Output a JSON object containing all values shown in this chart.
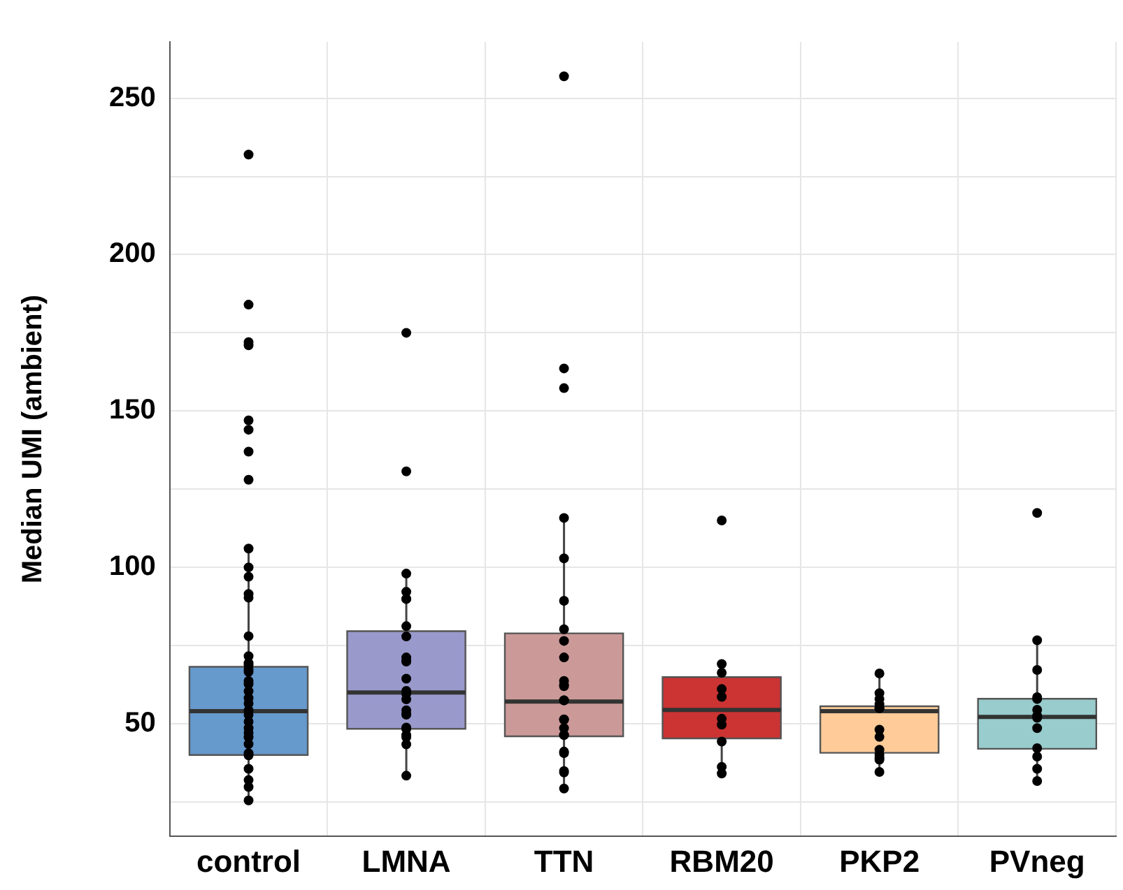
{
  "chart_data": {
    "type": "box",
    "ylabel": "Median UMI (ambient)",
    "categories": [
      "control",
      "LMNA",
      "TTN",
      "RBM20",
      "PKP2",
      "PVneg"
    ],
    "colors": [
      "#6699cc",
      "#9999cc",
      "#cc9999",
      "#cc3333",
      "#ffcc99",
      "#99cccc"
    ],
    "boxes": [
      {
        "low": 25,
        "q1": 40,
        "median": 54,
        "q3": 68.2,
        "high": 105.8
      },
      {
        "low": 33.3,
        "q1": 48.4,
        "median": 60,
        "q3": 79.6,
        "high": 97.8
      },
      {
        "low": 28.9,
        "q1": 46,
        "median": 57.1,
        "q3": 78.9,
        "high": 115.8
      },
      {
        "low": 35,
        "q1": 45.3,
        "median": 54.4,
        "q3": 64.9,
        "high": 68.9
      },
      {
        "low": 34.2,
        "q1": 40.7,
        "median": 54,
        "q3": 55.6,
        "high": 65.8
      },
      {
        "low": 31.1,
        "q1": 42,
        "median": 52.2,
        "q3": 58,
        "high": 75.8
      }
    ],
    "series": [
      {
        "type": "scatter",
        "color": "#000000",
        "x": [
          "control",
          "control",
          "control",
          "control",
          "control",
          "control",
          "control",
          "control",
          "control",
          "control",
          "control",
          "control",
          "control",
          "control",
          "control",
          "control",
          "control",
          "control",
          "control",
          "control",
          "control",
          "control",
          "control",
          "control",
          "control",
          "control",
          "control",
          "control",
          "control",
          "control",
          "control",
          "control",
          "control",
          "control",
          "control",
          "control",
          "control",
          "LMNA",
          "LMNA",
          "LMNA",
          "LMNA",
          "LMNA",
          "LMNA",
          "LMNA",
          "LMNA",
          "LMNA",
          "LMNA",
          "LMNA",
          "LMNA",
          "LMNA",
          "LMNA",
          "LMNA",
          "LMNA",
          "LMNA",
          "LMNA",
          "LMNA",
          "LMNA",
          "LMNA",
          "LMNA",
          "LMNA",
          "LMNA",
          "TTN",
          "TTN",
          "TTN",
          "TTN",
          "TTN",
          "TTN",
          "TTN",
          "TTN",
          "TTN",
          "TTN",
          "TTN",
          "TTN",
          "TTN",
          "TTN",
          "TTN",
          "TTN",
          "TTN",
          "TTN",
          "TTN",
          "TTN",
          "TTN",
          "TTN",
          "TTN",
          "TTN",
          "RBM20",
          "RBM20",
          "RBM20",
          "RBM20",
          "RBM20",
          "RBM20",
          "RBM20",
          "RBM20",
          "RBM20",
          "RBM20",
          "PKP2",
          "PKP2",
          "PKP2",
          "PKP2",
          "PKP2",
          "PKP2",
          "PKP2",
          "PKP2",
          "PKP2",
          "PKP2",
          "PKP2",
          "PKP2",
          "PKP2",
          "PKP2",
          "PVneg",
          "PVneg",
          "PVneg",
          "PVneg",
          "PVneg",
          "PVneg",
          "PVneg",
          "PVneg",
          "PVneg",
          "PVneg",
          "PVneg",
          "PVneg",
          "PVneg"
        ],
        "values": [
          232,
          184,
          172,
          171,
          147,
          144,
          137,
          128,
          106,
          100,
          97,
          91.5,
          90.3,
          78,
          71.6,
          69.4,
          68.7,
          67.3,
          66.6,
          63.7,
          62.7,
          60.4,
          58.2,
          56.5,
          54.3,
          52.9,
          50.7,
          48.6,
          47.1,
          45.7,
          43.5,
          40.6,
          39.9,
          35.6,
          32,
          29.8,
          25.5,
          175,
          130.7,
          98,
          92.2,
          89.9,
          89.9,
          81.2,
          77.9,
          71.2,
          70.2,
          69.9,
          64.4,
          60.5,
          59.6,
          57.8,
          54.3,
          52.9,
          53.2,
          48.8,
          48.3,
          46.4,
          45.7,
          43.4,
          33.4,
          257,
          163.6,
          157.3,
          115.8,
          102.9,
          89.3,
          80.2,
          76.5,
          71.2,
          63.7,
          62.5,
          62,
          57.5,
          57.5,
          51.4,
          51.3,
          48.6,
          46.4,
          46.4,
          41.1,
          40.6,
          34.9,
          34.4,
          29.3,
          115,
          69.1,
          66.3,
          61.1,
          58.6,
          51.6,
          49.7,
          44.3,
          36.2,
          34.1,
          66.1,
          59.8,
          57.9,
          56.2,
          55,
          55,
          55,
          48.1,
          45.8,
          41.7,
          40.2,
          39.2,
          38.5,
          34.6,
          117.4,
          76.7,
          67.2,
          58.5,
          57.9,
          54.5,
          52.6,
          51.9,
          48.6,
          42.2,
          39.5,
          35.6,
          31.7
        ]
      }
    ],
    "ylim": [
      14,
      268
    ],
    "yticks": [
      {
        "value": 25,
        "label": null
      },
      50,
      {
        "value": 75,
        "label": null
      },
      100,
      {
        "value": 125,
        "label": null
      },
      150,
      {
        "value": 175,
        "label": null
      },
      200,
      {
        "value": 225,
        "label": null
      },
      250
    ],
    "grid": true
  }
}
